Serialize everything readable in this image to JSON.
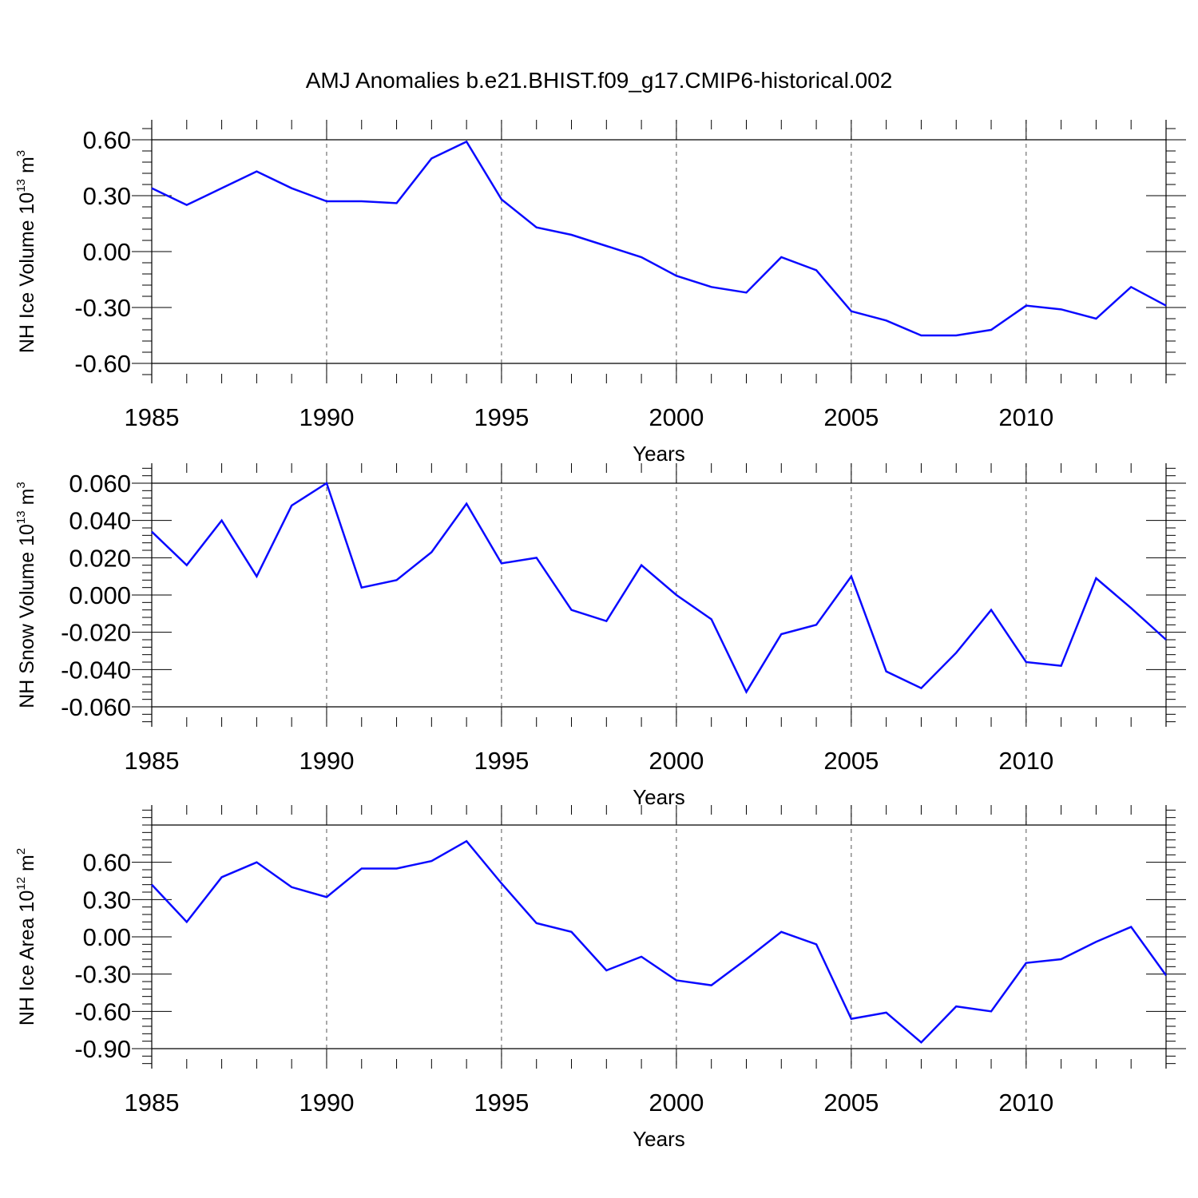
{
  "figure": {
    "title": "AMJ Anomalies b.e21.BHIST.f09_g17.CMIP6-historical.002",
    "line_color": "#0a0aff"
  },
  "chart_data": [
    {
      "type": "line",
      "ylabel": {
        "text": "NH Ice Volume 10",
        "exponent": "13",
        "unit": " m",
        "unit_exponent": "3"
      },
      "xlabel": "Years",
      "xlim": [
        1985,
        2014
      ],
      "ylim": [
        -0.6,
        0.6
      ],
      "yticks": [
        "-0.60",
        "-0.30",
        "0.00",
        "0.30",
        "0.60"
      ],
      "ytick_values": [
        -0.6,
        -0.3,
        0.0,
        0.3,
        0.6
      ],
      "xticks": [
        "1985",
        "1990",
        "1995",
        "2000",
        "2005",
        "2010"
      ],
      "xtick_values": [
        1985,
        1990,
        1995,
        2000,
        2005,
        2010
      ],
      "x": [
        1985,
        1986,
        1987,
        1988,
        1989,
        1990,
        1991,
        1992,
        1993,
        1994,
        1995,
        1996,
        1997,
        1998,
        1999,
        2000,
        2001,
        2002,
        2003,
        2004,
        2005,
        2006,
        2007,
        2008,
        2009,
        2010,
        2011,
        2012,
        2013,
        2014
      ],
      "series": [
        {
          "name": "NH Ice Volume",
          "values": [
            0.34,
            0.25,
            0.34,
            0.43,
            0.34,
            0.27,
            0.27,
            0.26,
            0.5,
            0.59,
            0.28,
            0.13,
            0.09,
            0.03,
            -0.03,
            -0.13,
            -0.19,
            -0.22,
            -0.03,
            -0.1,
            -0.32,
            -0.37,
            -0.45,
            -0.45,
            -0.42,
            -0.29,
            -0.31,
            -0.36,
            -0.19,
            -0.29
          ]
        }
      ]
    },
    {
      "type": "line",
      "ylabel": {
        "text": "NH Snow Volume 10",
        "exponent": "13",
        "unit": " m",
        "unit_exponent": "3"
      },
      "xlabel": "Years",
      "xlim": [
        1985,
        2014
      ],
      "ylim": [
        -0.06,
        0.06
      ],
      "yticks": [
        "-0.060",
        "-0.040",
        "-0.020",
        "0.000",
        "0.020",
        "0.040",
        "0.060"
      ],
      "ytick_values": [
        -0.06,
        -0.04,
        -0.02,
        0.0,
        0.02,
        0.04,
        0.06
      ],
      "xticks": [
        "1985",
        "1990",
        "1995",
        "2000",
        "2005",
        "2010"
      ],
      "xtick_values": [
        1985,
        1990,
        1995,
        2000,
        2005,
        2010
      ],
      "x": [
        1985,
        1986,
        1987,
        1988,
        1989,
        1990,
        1991,
        1992,
        1993,
        1994,
        1995,
        1996,
        1997,
        1998,
        1999,
        2000,
        2001,
        2002,
        2003,
        2004,
        2005,
        2006,
        2007,
        2008,
        2009,
        2010,
        2011,
        2012,
        2013,
        2014
      ],
      "series": [
        {
          "name": "NH Snow Volume",
          "values": [
            0.034,
            0.016,
            0.04,
            0.01,
            0.048,
            0.06,
            0.004,
            0.008,
            0.023,
            0.049,
            0.017,
            0.02,
            -0.008,
            -0.014,
            0.016,
            0.0,
            -0.013,
            -0.052,
            -0.021,
            -0.016,
            0.01,
            -0.041,
            -0.05,
            -0.031,
            -0.008,
            -0.036,
            -0.038,
            0.009,
            -0.007,
            -0.024
          ]
        }
      ]
    },
    {
      "type": "line",
      "ylabel": {
        "text": "NH Ice Area 10",
        "exponent": "12",
        "unit": " m",
        "unit_exponent": "2"
      },
      "xlabel": "Years",
      "xlim": [
        1985,
        2014
      ],
      "ylim": [
        -0.9,
        0.9
      ],
      "yticks": [
        "-0.90",
        "-0.60",
        "-0.30",
        "0.00",
        "0.30",
        "0.60"
      ],
      "ytick_values": [
        -0.9,
        -0.6,
        -0.3,
        0.0,
        0.3,
        0.6
      ],
      "xticks": [
        "1985",
        "1990",
        "1995",
        "2000",
        "2005",
        "2010"
      ],
      "xtick_values": [
        1985,
        1990,
        1995,
        2000,
        2005,
        2010
      ],
      "x": [
        1985,
        1986,
        1987,
        1988,
        1989,
        1990,
        1991,
        1992,
        1993,
        1994,
        1995,
        1996,
        1997,
        1998,
        1999,
        2000,
        2001,
        2002,
        2003,
        2004,
        2005,
        2006,
        2007,
        2008,
        2009,
        2010,
        2011,
        2012,
        2013,
        2014
      ],
      "series": [
        {
          "name": "NH Ice Area",
          "values": [
            0.42,
            0.12,
            0.48,
            0.6,
            0.4,
            0.32,
            0.55,
            0.55,
            0.61,
            0.77,
            0.43,
            0.11,
            0.04,
            -0.27,
            -0.16,
            -0.35,
            -0.39,
            -0.18,
            0.04,
            -0.06,
            -0.66,
            -0.61,
            -0.85,
            -0.56,
            -0.6,
            -0.21,
            -0.18,
            -0.04,
            0.08,
            -0.31
          ]
        }
      ]
    }
  ]
}
